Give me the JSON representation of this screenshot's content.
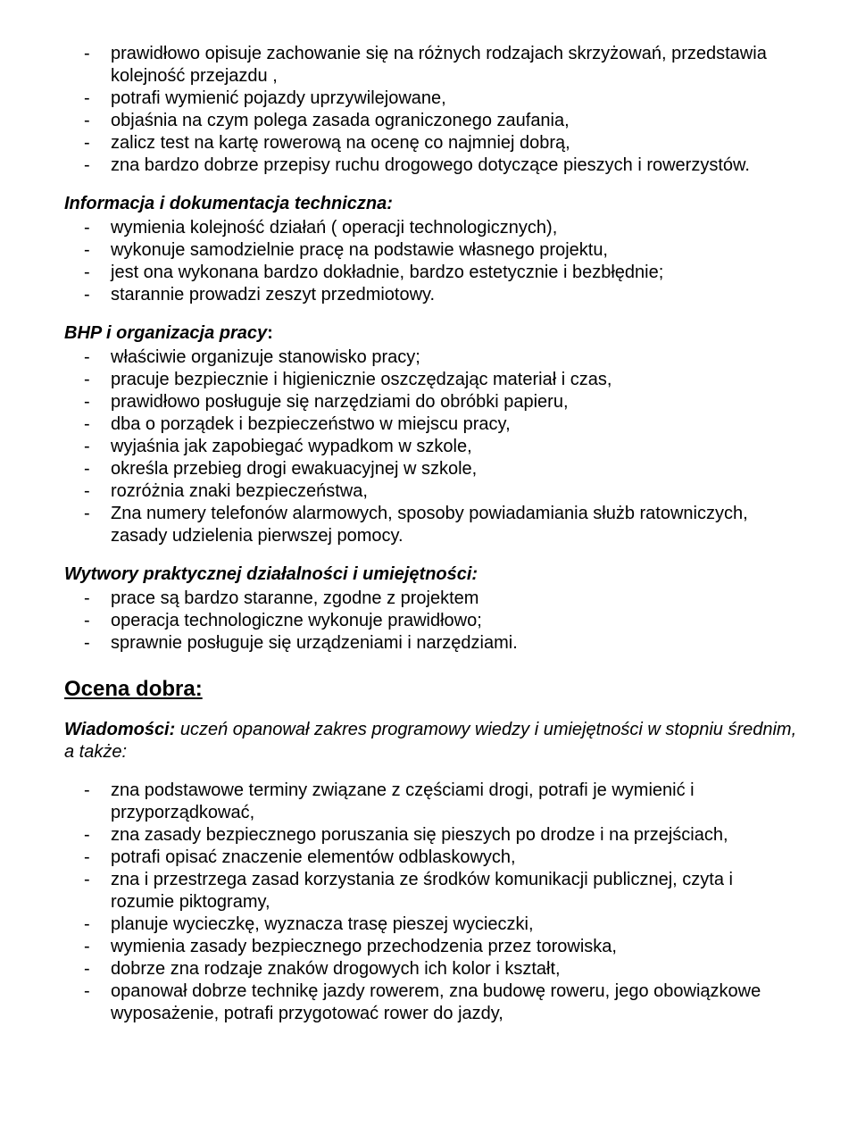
{
  "block1": {
    "items": [
      "prawidłowo opisuje zachowanie się na różnych rodzajach skrzyżowań, przedstawia kolejność przejazdu ,",
      "potrafi wymienić pojazdy uprzywilejowane,",
      "objaśnia na czym polega zasada ograniczonego zaufania,",
      "zalicz test na kartę rowerową na ocenę co najmniej dobrą,",
      "zna bardzo dobrze przepisy ruchu drogowego dotyczące pieszych i rowerzystów."
    ]
  },
  "block2": {
    "heading": "Informacja i dokumentacja techniczna:",
    "items": [
      "wymienia kolejność działań ( operacji technologicznych),",
      "wykonuje samodzielnie pracę na podstawie własnego projektu,",
      "jest ona wykonana bardzo dokładnie, bardzo estetycznie i bezbłędnie;",
      "starannie prowadzi zeszyt przedmiotowy."
    ]
  },
  "block3": {
    "heading_italic": "BHP i organizacja pracy",
    "heading_tail": ":",
    "items": [
      "właściwie organizuje stanowisko pracy;",
      "pracuje bezpiecznie i higienicznie oszczędzając materiał i czas,",
      "prawidłowo posługuje się narzędziami do obróbki papieru,",
      "dba o porządek i bezpieczeństwo w miejscu pracy,",
      "wyjaśnia jak zapobiegać wypadkom w szkole,",
      "określa przebieg drogi ewakuacyjnej w szkole,",
      "rozróżnia znaki bezpieczeństwa,",
      "Zna numery telefonów alarmowych, sposoby powiadamiania służb ratowniczych, zasady udzielenia pierwszej pomocy."
    ]
  },
  "block4": {
    "heading": "Wytwory praktycznej działalności i umiejętności:",
    "items": [
      "prace są bardzo staranne, zgodne z projektem",
      "operacja technologiczne wykonuje prawidłowo;",
      "sprawnie posługuje się urządzeniami i narzędziami."
    ]
  },
  "section_title": "Ocena dobra:",
  "wiadomosci": {
    "bold": "Wiadomości:",
    "rest": " uczeń opanował zakres programowy wiedzy i umiejętności w stopniu średnim, a także:"
  },
  "block5": {
    "items": [
      " zna podstawowe terminy związane z częściami drogi, potrafi je wymienić i przyporządkować,",
      "zna zasady bezpiecznego poruszania się pieszych po drodze i na przejściach,",
      "potrafi opisać znaczenie elementów odblaskowych,",
      "zna i przestrzega zasad korzystania ze środków komunikacji publicznej, czyta i rozumie piktogramy,",
      "planuje wycieczkę, wyznacza trasę pieszej wycieczki,",
      "wymienia zasady bezpiecznego przechodzenia przez torowiska,",
      "dobrze zna rodzaje znaków drogowych ich kolor i kształt,",
      "opanował dobrze technikę jazdy rowerem, zna budowę roweru, jego obowiązkowe wyposażenie, potrafi przygotować rower do jazdy,"
    ]
  }
}
